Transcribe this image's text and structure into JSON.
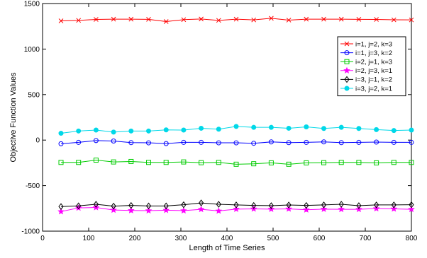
{
  "chart_data": {
    "type": "line",
    "title": "",
    "xlabel": "Length of Time Series",
    "ylabel": "Objective Function Values",
    "xlim": [
      0,
      800
    ],
    "ylim": [
      -1000,
      1500
    ],
    "xticks": [
      0,
      100,
      200,
      300,
      400,
      500,
      600,
      700,
      800
    ],
    "yticks": [
      -1000,
      -500,
      0,
      500,
      1000,
      1500
    ],
    "grid": false,
    "legend_position": "right, upper-middle",
    "x": [
      40,
      78,
      116,
      154,
      192,
      230,
      268,
      306,
      344,
      382,
      420,
      458,
      496,
      534,
      572,
      610,
      648,
      686,
      724,
      762,
      800
    ],
    "series": [
      {
        "name": "i=1, j=2, k=3",
        "color": "#ff0000",
        "marker": "x",
        "values": [
          1310,
          1315,
          1325,
          1328,
          1328,
          1326,
          1302,
          1323,
          1330,
          1315,
          1328,
          1320,
          1338,
          1318,
          1328,
          1328,
          1328,
          1326,
          1325,
          1321,
          1320
        ]
      },
      {
        "name": "i=1, j=3, k=2",
        "color": "#0000ff",
        "marker": "circle",
        "values": [
          -40,
          -25,
          -5,
          -10,
          -28,
          -30,
          -38,
          -25,
          -25,
          -30,
          -30,
          -35,
          -20,
          -28,
          -25,
          -20,
          -28,
          -25,
          -22,
          -25,
          -25
        ]
      },
      {
        "name": "i=2, j=1, k=3",
        "color": "#00cc00",
        "marker": "square",
        "values": [
          -245,
          -245,
          -220,
          -240,
          -235,
          -245,
          -245,
          -240,
          -248,
          -245,
          -265,
          -260,
          -250,
          -265,
          -250,
          -248,
          -245,
          -245,
          -250,
          -245,
          -245
        ]
      },
      {
        "name": "i=2, j=3, k=1",
        "color": "#ff00ff",
        "marker": "star",
        "values": [
          -785,
          -745,
          -740,
          -768,
          -773,
          -775,
          -770,
          -775,
          -760,
          -778,
          -758,
          -755,
          -758,
          -755,
          -765,
          -758,
          -760,
          -760,
          -752,
          -755,
          -760
        ]
      },
      {
        "name": "i=3, j=1, k=2",
        "color": "#000000",
        "marker": "diamond",
        "values": [
          -730,
          -722,
          -705,
          -725,
          -718,
          -723,
          -723,
          -710,
          -690,
          -705,
          -712,
          -718,
          -720,
          -713,
          -718,
          -712,
          -705,
          -720,
          -712,
          -712,
          -710
        ]
      },
      {
        "name": "i=3, j=2, k=1",
        "color": "#00d8e8",
        "marker": "filled-circle",
        "values": [
          75,
          100,
          110,
          88,
          100,
          100,
          112,
          110,
          130,
          120,
          150,
          140,
          140,
          130,
          145,
          128,
          140,
          128,
          115,
          105,
          110
        ]
      }
    ]
  }
}
